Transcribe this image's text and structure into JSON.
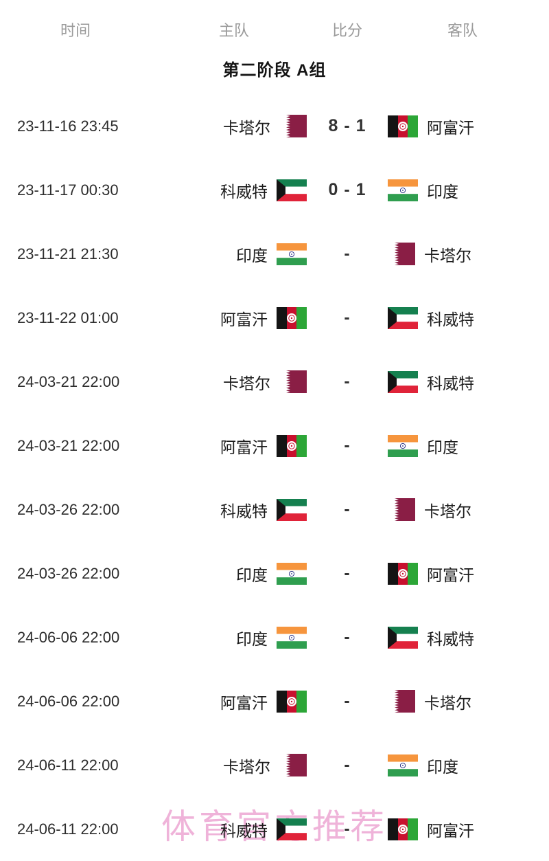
{
  "header": {
    "time": "时间",
    "home": "主队",
    "score": "比分",
    "away": "客队"
  },
  "section_title": "第二阶段 A组",
  "watermark": {
    "text": "体育官方推荐",
    "color": "#ea9ece"
  },
  "flags": {
    "qatar": {
      "maroon": "#8a1e45",
      "white": "#ffffff"
    },
    "afghanistan": {
      "black": "#141414",
      "red": "#c8102e",
      "green": "#2ca637",
      "emblem": "#ffffff"
    },
    "kuwait": {
      "green": "#15804f",
      "white": "#ffffff",
      "red": "#e02339",
      "black": "#141414"
    },
    "india": {
      "saffron": "#f6953d",
      "white": "#ffffff",
      "green": "#2f9e4f",
      "navy": "#1a237e"
    }
  },
  "matches": [
    {
      "time": "23-11-16 23:45",
      "home": "卡塔尔",
      "home_flag": "qatar",
      "score": "8 - 1",
      "away": "阿富汗",
      "away_flag": "afghanistan"
    },
    {
      "time": "23-11-17 00:30",
      "home": "科威特",
      "home_flag": "kuwait",
      "score": "0 - 1",
      "away": "印度",
      "away_flag": "india"
    },
    {
      "time": "23-11-21 21:30",
      "home": "印度",
      "home_flag": "india",
      "score": "-",
      "away": "卡塔尔",
      "away_flag": "qatar"
    },
    {
      "time": "23-11-22 01:00",
      "home": "阿富汗",
      "home_flag": "afghanistan",
      "score": "-",
      "away": "科威特",
      "away_flag": "kuwait"
    },
    {
      "time": "24-03-21 22:00",
      "home": "卡塔尔",
      "home_flag": "qatar",
      "score": "-",
      "away": "科威特",
      "away_flag": "kuwait"
    },
    {
      "time": "24-03-21 22:00",
      "home": "阿富汗",
      "home_flag": "afghanistan",
      "score": "-",
      "away": "印度",
      "away_flag": "india"
    },
    {
      "time": "24-03-26 22:00",
      "home": "科威特",
      "home_flag": "kuwait",
      "score": "-",
      "away": "卡塔尔",
      "away_flag": "qatar"
    },
    {
      "time": "24-03-26 22:00",
      "home": "印度",
      "home_flag": "india",
      "score": "-",
      "away": "阿富汗",
      "away_flag": "afghanistan"
    },
    {
      "time": "24-06-06 22:00",
      "home": "印度",
      "home_flag": "india",
      "score": "-",
      "away": "科威特",
      "away_flag": "kuwait"
    },
    {
      "time": "24-06-06 22:00",
      "home": "阿富汗",
      "home_flag": "afghanistan",
      "score": "-",
      "away": "卡塔尔",
      "away_flag": "qatar"
    },
    {
      "time": "24-06-11 22:00",
      "home": "卡塔尔",
      "home_flag": "qatar",
      "score": "-",
      "away": "印度",
      "away_flag": "india"
    },
    {
      "time": "24-06-11 22:00",
      "home": "科威特",
      "home_flag": "kuwait",
      "score": "-",
      "away": "阿富汗",
      "away_flag": "afghanistan"
    }
  ]
}
